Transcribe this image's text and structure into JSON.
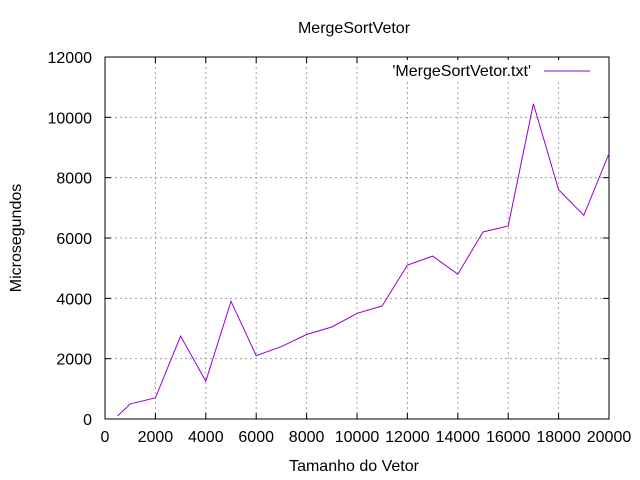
{
  "chart_data": {
    "type": "line",
    "title": "MergeSortVetor",
    "xlabel": "Tamanho do Vetor",
    "ylabel": "Microsegundos",
    "xlim": [
      0,
      20000
    ],
    "ylim": [
      0,
      12000
    ],
    "xticks": [
      0,
      2000,
      4000,
      6000,
      8000,
      10000,
      12000,
      14000,
      16000,
      18000,
      20000
    ],
    "yticks": [
      0,
      2000,
      4000,
      6000,
      8000,
      10000,
      12000
    ],
    "grid": true,
    "legend_position": "top-right",
    "series": [
      {
        "name": "'MergeSortVetor.txt'",
        "color": "#9400d3",
        "x": [
          500,
          1000,
          2000,
          3000,
          4000,
          5000,
          6000,
          7000,
          8000,
          9000,
          10000,
          11000,
          12000,
          13000,
          14000,
          15000,
          16000,
          17000,
          18000,
          19000,
          20000
        ],
        "y": [
          100,
          500,
          700,
          2750,
          1250,
          3900,
          2100,
          2400,
          2800,
          3050,
          3500,
          3750,
          5100,
          5400,
          4800,
          6200,
          6400,
          10450,
          7600,
          6750,
          8800
        ]
      }
    ]
  }
}
